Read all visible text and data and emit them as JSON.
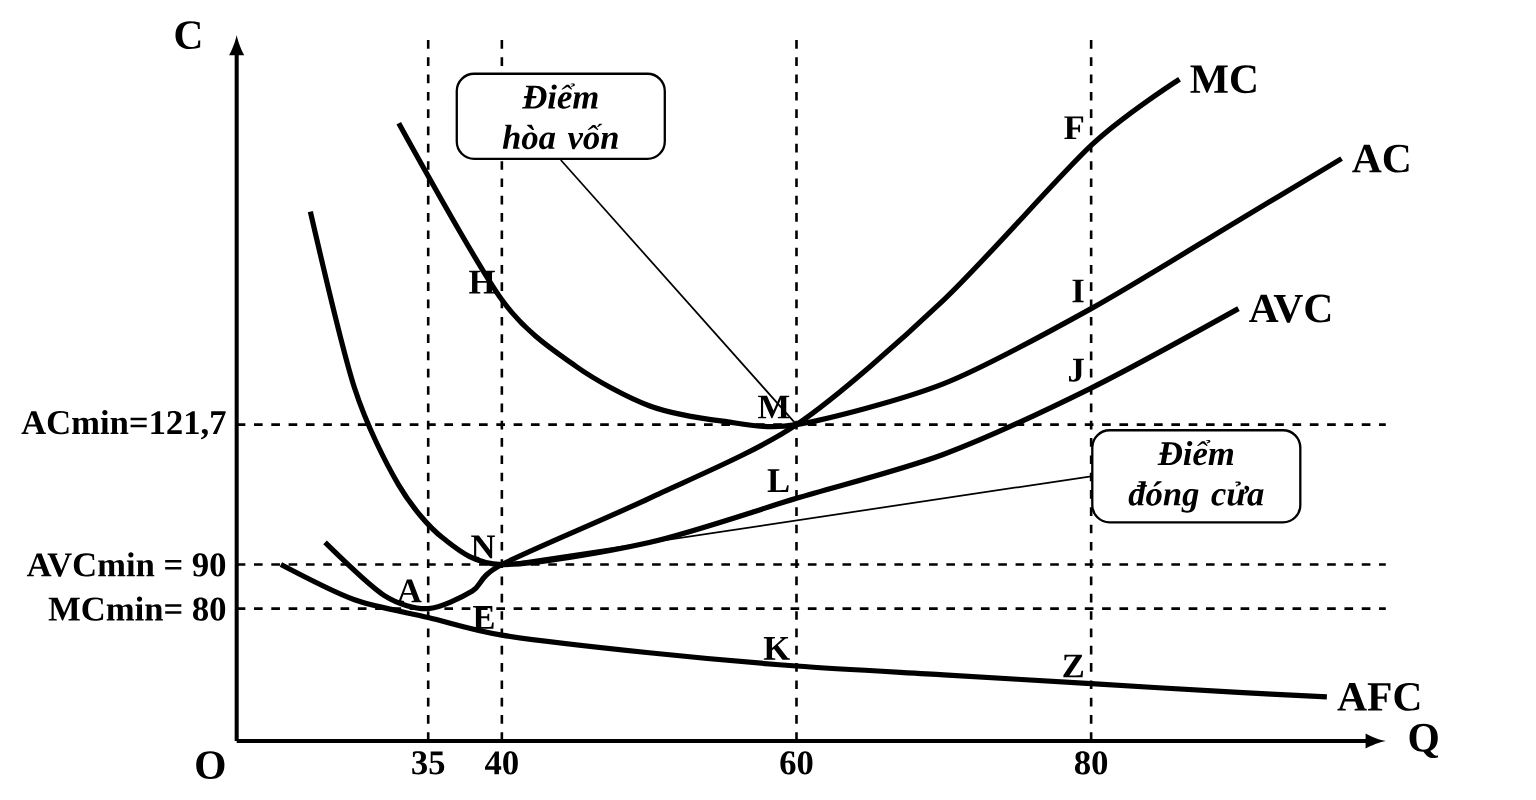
{
  "chart_data": {
    "type": "line",
    "xlabel": "Q",
    "ylabel": "C",
    "xlim": [
      22,
      100
    ],
    "ylim": [
      50,
      210
    ],
    "xticks": [
      35,
      40,
      60,
      80
    ],
    "yticks": [
      {
        "value": 80,
        "label": "MCmin= 80"
      },
      {
        "value": 90,
        "label": "AVCmin = 90"
      },
      {
        "value": 121.7,
        "label": "ACmin=121,7"
      }
    ],
    "grid": false,
    "legend": false,
    "marker": "none",
    "series": [
      {
        "name": "MC",
        "color": "#000000",
        "x": [
          28,
          32,
          35,
          38,
          40,
          50,
          60,
          70,
          80,
          86
        ],
        "values": [
          95,
          83,
          80,
          84,
          90,
          105,
          121.7,
          150,
          185,
          200
        ]
      },
      {
        "name": "AC",
        "color": "#000000",
        "x": [
          33,
          40,
          45,
          50,
          55,
          60,
          70,
          80,
          90,
          97
        ],
        "values": [
          190,
          150,
          135,
          126,
          122.5,
          121.7,
          131,
          148,
          168,
          182
        ]
      },
      {
        "name": "AVC",
        "color": "#000000",
        "x": [
          27,
          30,
          33,
          36,
          40,
          50,
          60,
          70,
          80,
          90
        ],
        "values": [
          170,
          130,
          108,
          96,
          90,
          95,
          105,
          115,
          130,
          148
        ]
      },
      {
        "name": "AFC",
        "color": "#000000",
        "x": [
          25,
          30,
          35,
          40,
          50,
          60,
          70,
          80,
          90,
          96
        ],
        "values": [
          90,
          82,
          78,
          74,
          70,
          67,
          65,
          63,
          61,
          60
        ]
      }
    ],
    "ref_lines": [
      {
        "axis": "x",
        "value": 35,
        "line_style": "dashed"
      },
      {
        "axis": "x",
        "value": 40,
        "line_style": "dashed"
      },
      {
        "axis": "x",
        "value": 60,
        "line_style": "dashed"
      },
      {
        "axis": "x",
        "value": 80,
        "line_style": "dashed"
      },
      {
        "axis": "y",
        "value": 80,
        "line_style": "dashed"
      },
      {
        "axis": "y",
        "value": 90,
        "line_style": "dashed"
      },
      {
        "axis": "y",
        "value": 121.7,
        "line_style": "dashed"
      }
    ],
    "annotations": [
      "O",
      {
        "text": "A",
        "x": 35,
        "y": 80
      },
      {
        "text": "N",
        "x": 40,
        "y": 90
      },
      {
        "text": "E",
        "x": 40,
        "y": 74
      },
      {
        "text": "H",
        "x": 40,
        "y": 150
      },
      {
        "text": "M",
        "x": 60,
        "y": 121.7
      },
      {
        "text": "L",
        "x": 60,
        "y": 105
      },
      {
        "text": "K",
        "x": 60,
        "y": 67
      },
      {
        "text": "F",
        "x": 80,
        "y": 185
      },
      {
        "text": "I",
        "x": 80,
        "y": 148
      },
      {
        "text": "J",
        "x": 80,
        "y": 130
      },
      {
        "text": "Z",
        "x": 80,
        "y": 63
      },
      {
        "text": "Điểm hòa vốn",
        "x": 60,
        "y": 121.7
      },
      {
        "text": "Điểm đóng cửa",
        "x": 40,
        "y": 90
      }
    ]
  }
}
